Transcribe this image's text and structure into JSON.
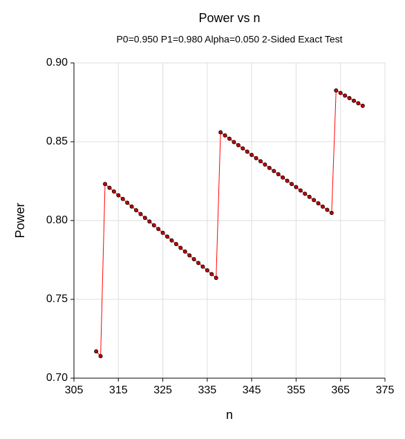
{
  "chart_data": {
    "type": "line",
    "title": "Power vs n",
    "subtitle": "P0=0.950 P1=0.980 Alpha=0.050 2-Sided Exact Test",
    "x_label": "n",
    "y_label": "Power",
    "x": [
      310,
      311,
      312,
      313,
      314,
      315,
      316,
      317,
      318,
      319,
      320,
      321,
      322,
      323,
      324,
      325,
      326,
      327,
      328,
      329,
      330,
      331,
      332,
      333,
      334,
      335,
      336,
      337,
      338,
      339,
      340,
      341,
      342,
      343,
      344,
      345,
      346,
      347,
      348,
      349,
      350,
      351,
      352,
      353,
      354,
      355,
      356,
      357,
      358,
      359,
      360,
      361,
      362,
      363,
      364,
      365,
      366,
      367,
      368,
      369,
      370
    ],
    "series": [
      {
        "name": "Power",
        "color": "#ff0000",
        "marker_color": "#c00000",
        "values": [
          0.717,
          0.714,
          0.8232,
          0.8208,
          0.8184,
          0.816,
          0.8137,
          0.8113,
          0.8089,
          0.8065,
          0.8041,
          0.8017,
          0.7994,
          0.797,
          0.7946,
          0.7922,
          0.7898,
          0.7874,
          0.7851,
          0.7827,
          0.7803,
          0.7779,
          0.7755,
          0.7731,
          0.7708,
          0.7684,
          0.766,
          0.7636,
          0.856,
          0.854,
          0.8519,
          0.8498,
          0.8478,
          0.8458,
          0.8437,
          0.8416,
          0.8396,
          0.8376,
          0.8355,
          0.8334,
          0.8314,
          0.8294,
          0.8273,
          0.8252,
          0.8232,
          0.8212,
          0.8191,
          0.817,
          0.815,
          0.813,
          0.8109,
          0.8088,
          0.8068,
          0.8048,
          0.8825,
          0.8809,
          0.8793,
          0.8777,
          0.876,
          0.8744,
          0.8728
        ]
      }
    ],
    "xlim": [
      305,
      375
    ],
    "xticks": [
      305,
      315,
      325,
      335,
      345,
      355,
      365,
      375
    ],
    "ylim": [
      0.7,
      0.9
    ],
    "yticks": [
      {
        "value": 0.7,
        "label": "0.70"
      },
      {
        "value": 0.75,
        "label": "0.75"
      },
      {
        "value": 0.8,
        "label": "0.80"
      },
      {
        "value": 0.85,
        "label": "0.85"
      },
      {
        "value": 0.9,
        "label": "0.90"
      }
    ],
    "grid": true
  }
}
